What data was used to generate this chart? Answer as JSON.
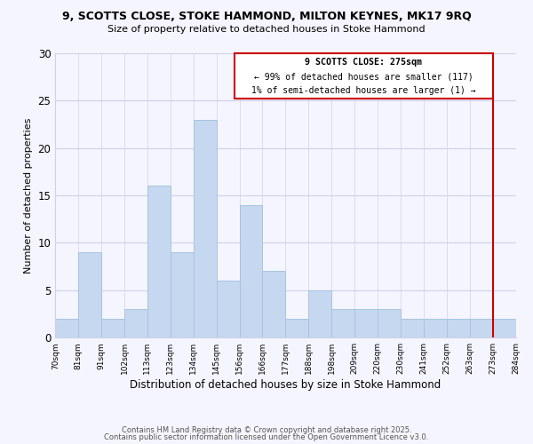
{
  "title1": "9, SCOTTS CLOSE, STOKE HAMMOND, MILTON KEYNES, MK17 9RQ",
  "title2": "Size of property relative to detached houses in Stoke Hammond",
  "xlabel": "Distribution of detached houses by size in Stoke Hammond",
  "ylabel": "Number of detached properties",
  "bar_labels": [
    "70sqm",
    "81sqm",
    "91sqm",
    "102sqm",
    "113sqm",
    "123sqm",
    "134sqm",
    "145sqm",
    "156sqm",
    "166sqm",
    "177sqm",
    "188sqm",
    "198sqm",
    "209sqm",
    "220sqm",
    "230sqm",
    "241sqm",
    "252sqm",
    "263sqm",
    "273sqm",
    "284sqm"
  ],
  "bar_values": [
    2,
    9,
    2,
    3,
    16,
    9,
    23,
    6,
    14,
    7,
    2,
    5,
    3,
    3,
    3,
    2,
    2,
    2,
    2,
    2
  ],
  "bar_color": "#c5d8f0",
  "bar_edge_color": "#a8c4e0",
  "ylim": [
    0,
    30
  ],
  "yticks": [
    0,
    5,
    10,
    15,
    20,
    25,
    30
  ],
  "vline_color": "#cc0000",
  "annotation_title": "9 SCOTTS CLOSE: 275sqm",
  "annotation_line1": "← 99% of detached houses are smaller (117)",
  "annotation_line2": "1% of semi-detached houses are larger (1) →",
  "footer1": "Contains HM Land Registry data © Crown copyright and database right 2025.",
  "footer2": "Contains public sector information licensed under the Open Government Licence v3.0.",
  "background_color": "#f5f5ff",
  "grid_color": "#d0d0e8"
}
